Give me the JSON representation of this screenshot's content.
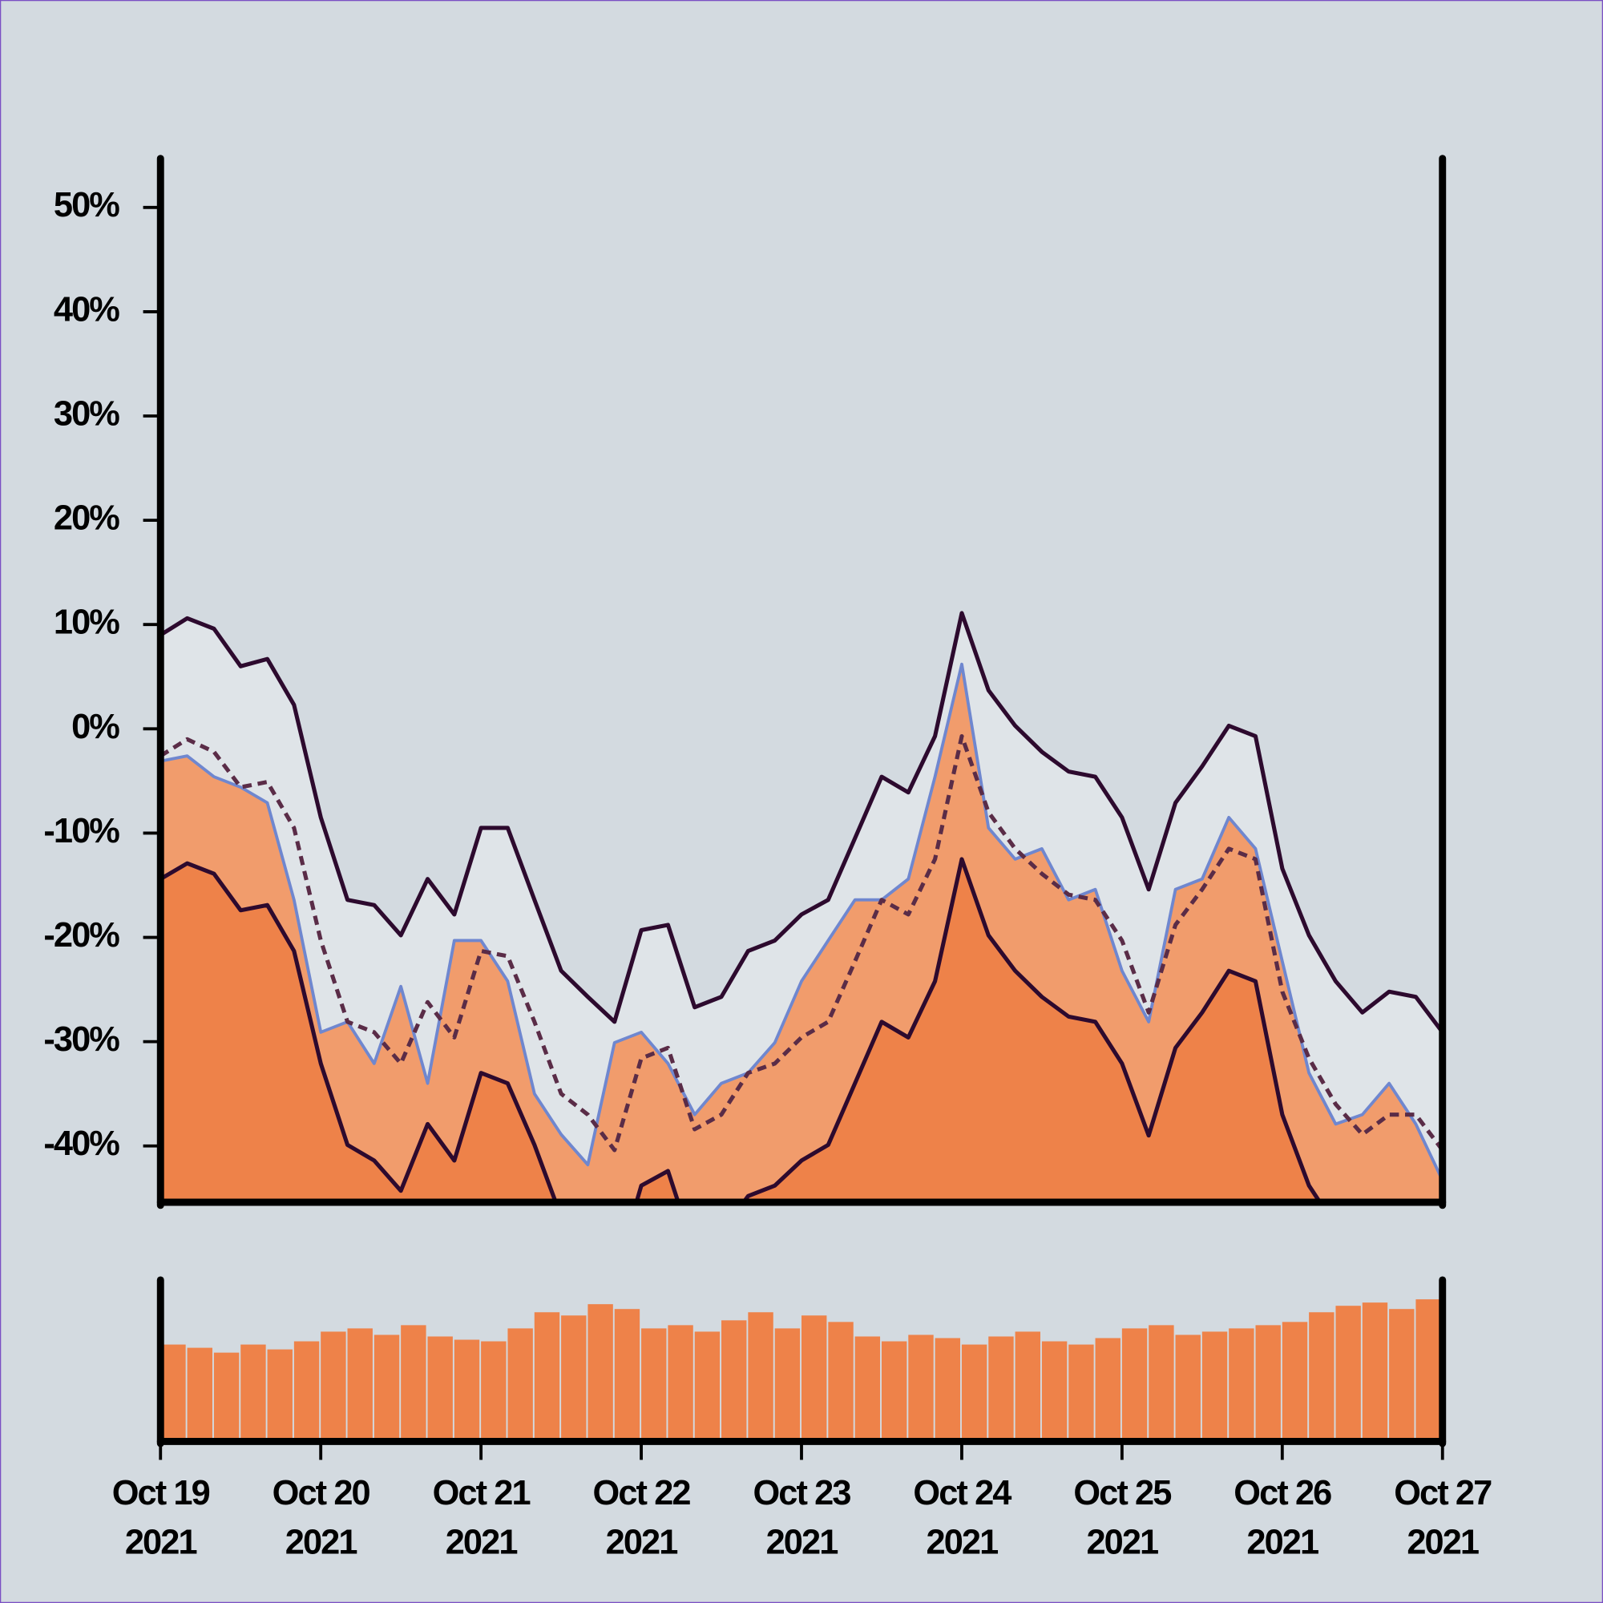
{
  "chart_data": [
    {
      "type": "band-line",
      "xlim": [
        "2021-10-19",
        "2021-10-27"
      ],
      "ylim": [
        -45.4,
        54.5
      ],
      "yticks": [
        {
          "value": -40,
          "label": "-40%"
        },
        {
          "value": -30,
          "label": "-30%"
        },
        {
          "value": -20,
          "label": "-20%"
        },
        {
          "value": -10,
          "label": "-10%"
        },
        {
          "value": 0,
          "label": "0%"
        },
        {
          "value": 10,
          "label": "10%"
        },
        {
          "value": 20,
          "label": "20%"
        },
        {
          "value": 30,
          "label": "30%"
        },
        {
          "value": 40,
          "label": "40%"
        },
        {
          "value": 50,
          "label": "50%"
        }
      ],
      "band_color": "#dfe4e8",
      "series": [
        {
          "color": "#2d0a2e",
          "fill": "#ee8249",
          "values": [
            -14.4,
            -12.9,
            -13.9,
            -17.4,
            -16.9,
            -21.3,
            -32.1,
            -39.9,
            -41.4,
            -44.3,
            -37.9,
            -41.4,
            -33,
            -34,
            -39.9,
            -46.8,
            -48.7,
            -52.6,
            -43.8,
            -42.4,
            -50.2,
            -48.3,
            -44.8,
            -43.8,
            -41.4,
            -39.9,
            -34,
            -28.1,
            -29.6,
            -24.2,
            -12.5,
            -19.8,
            -23.2,
            -25.7,
            -27.6,
            -28.1,
            -32.1,
            -39,
            -30.6,
            -27.2,
            -23.2,
            -24.2,
            -37,
            -43.8,
            -47.7,
            -50.7,
            -48.7,
            -48.7,
            -52.2
          ]
        },
        {
          "color": "#6f87cf",
          "fill": "#f19c6c",
          "values": [
            -3.1,
            -2.6,
            -4.6,
            -5.6,
            -7.1,
            -16.4,
            -29.1,
            -28.1,
            -32.1,
            -24.7,
            -34,
            -20.3,
            -20.3,
            -24.2,
            -35,
            -38.9,
            -41.8,
            -30.1,
            -29.1,
            -32.1,
            -37,
            -34,
            -33,
            -30.1,
            -24.2,
            -20.3,
            -16.4,
            -16.4,
            -14.4,
            -4.6,
            6.2,
            -9.5,
            -12.5,
            -11.5,
            -16.4,
            -15.4,
            -23.2,
            -28.1,
            -15.4,
            -14.4,
            -8.5,
            -11.5,
            -22.3,
            -33,
            -37.9,
            -37,
            -34,
            -37.9,
            -43.3
          ]
        },
        {
          "color": "#5a2c47",
          "dash": true,
          "values": [
            -2.6,
            -1,
            -2.2,
            -5.6,
            -5.1,
            -9.5,
            -20.3,
            -28.1,
            -29.1,
            -32.1,
            -26.2,
            -29.6,
            -21.3,
            -21.8,
            -28.1,
            -35,
            -37,
            -40.4,
            -31.6,
            -30.6,
            -38.4,
            -37,
            -33,
            -32.1,
            -29.6,
            -28.1,
            -22.3,
            -16.4,
            -17.8,
            -12.5,
            -0.7,
            -8,
            -11.5,
            -13.9,
            -15.9,
            -16.4,
            -20.3,
            -27.2,
            -18.8,
            -15.4,
            -11.5,
            -12.5,
            -25.2,
            -31.6,
            -36,
            -38.9,
            -37,
            -37,
            -40.4
          ]
        },
        {
          "color": "#2d0a2e",
          "values": [
            9,
            10.6,
            9.6,
            6,
            6.7,
            2.3,
            -8.5,
            -16.4,
            -16.9,
            -19.8,
            -14.4,
            -17.8,
            -9.5,
            -9.5,
            -16.4,
            -23.2,
            -25.7,
            -28.1,
            -19.3,
            -18.8,
            -26.7,
            -25.7,
            -21.3,
            -20.3,
            -17.8,
            -16.4,
            -10.5,
            -4.6,
            -6.1,
            -0.7,
            11.1,
            3.7,
            0.3,
            -2.2,
            -4.1,
            -4.6,
            -8.5,
            -15.4,
            -7.1,
            -3.6,
            0.3,
            -0.7,
            -13.4,
            -19.8,
            -24.2,
            -27.2,
            -25.2,
            -25.7,
            -29.1
          ]
        }
      ]
    },
    {
      "type": "bar",
      "xlim": [
        "2021-10-19",
        "2021-10-27"
      ],
      "ylim": [
        0,
        100
      ],
      "color": "#ee8249",
      "values": [
        60,
        58,
        55,
        60,
        57,
        62,
        68,
        70,
        66,
        72,
        65,
        63,
        62,
        70,
        80,
        78,
        85,
        82,
        70,
        72,
        68,
        75,
        80,
        70,
        78,
        74,
        65,
        62,
        66,
        64,
        60,
        65,
        68,
        62,
        60,
        64,
        70,
        72,
        66,
        68,
        70,
        72,
        74,
        80,
        84,
        86,
        82,
        88
      ],
      "xticks": [
        {
          "value": "2021-10-19",
          "label": [
            "Oct 19",
            "2021"
          ]
        },
        {
          "value": "2021-10-20",
          "label": [
            "Oct 20",
            "2021"
          ]
        },
        {
          "value": "2021-10-21",
          "label": [
            "Oct 21",
            "2021"
          ]
        },
        {
          "value": "2021-10-22",
          "label": [
            "Oct 22",
            "2021"
          ]
        },
        {
          "value": "2021-10-23",
          "label": [
            "Oct 23",
            "2021"
          ]
        },
        {
          "value": "2021-10-24",
          "label": [
            "Oct 24",
            "2021"
          ]
        },
        {
          "value": "2021-10-25",
          "label": [
            "Oct 25",
            "2021"
          ]
        },
        {
          "value": "2021-10-26",
          "label": [
            "Oct 26",
            "2021"
          ]
        },
        {
          "value": "2021-10-27",
          "label": [
            "Oct 27",
            "2021"
          ]
        }
      ]
    }
  ]
}
